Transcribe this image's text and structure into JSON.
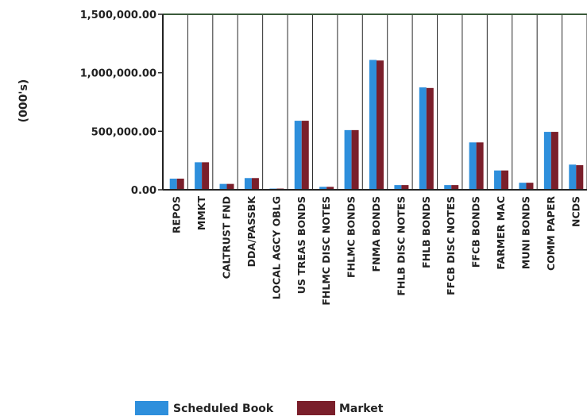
{
  "chart_data": {
    "type": "bar",
    "ylabel": "(000's)",
    "ylim": [
      0,
      1500000
    ],
    "yticks": [
      0,
      500000,
      1000000,
      1500000
    ],
    "ytick_labels": [
      "0.00",
      "500,000.00",
      "1,000,000.00",
      "1,500,000.00"
    ],
    "categories": [
      "REPOS",
      "MMKT",
      "CALTRUST FND",
      "DDA/PASSBK",
      "LOCAL AGCY OBLG",
      "US TREAS BONDS",
      "FHLMC DISC NOTES",
      "FHLMC BONDS",
      "FNMA BONDS",
      "FHLB DISC NOTES",
      "FHLB BONDS",
      "FFCB DISC NOTES",
      "FFCB BONDS",
      "FARMER MAC",
      "MUNI BONDS",
      "COMM PAPER",
      "NCDS"
    ],
    "series": [
      {
        "name": "Scheduled Book",
        "color": "#2e8fdc",
        "values": [
          95000,
          235000,
          50000,
          100000,
          10000,
          590000,
          25000,
          510000,
          1110000,
          40000,
          875000,
          40000,
          405000,
          165000,
          60000,
          495000,
          215000
        ]
      },
      {
        "name": "Market",
        "color": "#7a1f2b",
        "values": [
          95000,
          235000,
          50000,
          100000,
          10000,
          590000,
          25000,
          510000,
          1105000,
          40000,
          870000,
          40000,
          405000,
          165000,
          60000,
          495000,
          210000
        ]
      }
    ],
    "grid": "vertical",
    "legend": "bottom"
  }
}
